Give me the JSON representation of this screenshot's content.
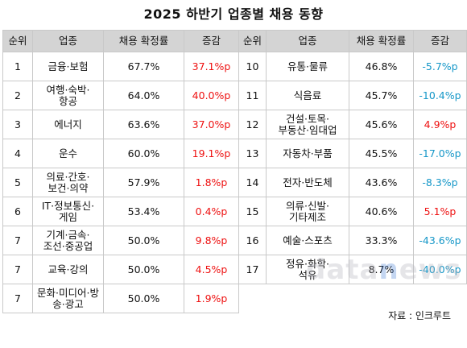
{
  "title": "2025 하반기 업종별 채용 동향",
  "headers": {
    "rank": "순위",
    "industry": "업종",
    "rate": "채용 확정률",
    "change": "증감"
  },
  "left": [
    {
      "rank": "1",
      "industry": "금융·보험",
      "rate": "67.7%",
      "change": "37.1%p",
      "trend": "up"
    },
    {
      "rank": "2",
      "industry": "여행·숙박·\n항공",
      "rate": "64.0%",
      "change": "40.0%p",
      "trend": "up"
    },
    {
      "rank": "3",
      "industry": "에너지",
      "rate": "63.6%",
      "change": "37.0%p",
      "trend": "up"
    },
    {
      "rank": "4",
      "industry": "운수",
      "rate": "60.0%",
      "change": "19.1%p",
      "trend": "up"
    },
    {
      "rank": "5",
      "industry": "의료·간호·\n보건·의약",
      "rate": "57.9%",
      "change": "1.8%p",
      "trend": "up"
    },
    {
      "rank": "6",
      "industry": "IT·정보통신·\n게임",
      "rate": "53.4%",
      "change": "0.4%p",
      "trend": "up"
    },
    {
      "rank": "7",
      "industry": "기계·금속·\n조선·중공업",
      "rate": "50.0%",
      "change": "9.8%p",
      "trend": "up"
    },
    {
      "rank": "7",
      "industry": "교육·강의",
      "rate": "50.0%",
      "change": "4.5%p",
      "trend": "up"
    },
    {
      "rank": "7",
      "industry": "문화·미디어·방\n송·광고",
      "rate": "50.0%",
      "change": "1.9%p",
      "trend": "up"
    }
  ],
  "right": [
    {
      "rank": "10",
      "industry": "유통·물류",
      "rate": "46.8%",
      "change": "-5.7%p",
      "trend": "down"
    },
    {
      "rank": "11",
      "industry": "식음료",
      "rate": "45.7%",
      "change": "-10.4%p",
      "trend": "down"
    },
    {
      "rank": "12",
      "industry": "건설·토목·\n부동산·임대업",
      "rate": "45.6%",
      "change": "4.9%p",
      "trend": "up"
    },
    {
      "rank": "13",
      "industry": "자동차·부품",
      "rate": "45.5%",
      "change": "-17.0%p",
      "trend": "down"
    },
    {
      "rank": "14",
      "industry": "전자·반도체",
      "rate": "43.6%",
      "change": "-8.3%p",
      "trend": "down"
    },
    {
      "rank": "15",
      "industry": "의류·신발·\n기타제조",
      "rate": "40.6%",
      "change": "5.1%p",
      "trend": "up"
    },
    {
      "rank": "16",
      "industry": "예술·스포츠",
      "rate": "33.3%",
      "change": "-43.6%p",
      "trend": "down"
    },
    {
      "rank": "17",
      "industry": "정유·화학·\n석유",
      "rate": "8.7%",
      "change": "-40.0%p",
      "trend": "down"
    }
  ],
  "source": "자료 : 인크루트",
  "watermark": {
    "pre": "data",
    "n": "n",
    "post": "ews"
  },
  "colors": {
    "up": "#ee1111",
    "down": "#1597c8",
    "header_bg": "#d4d4d4"
  }
}
